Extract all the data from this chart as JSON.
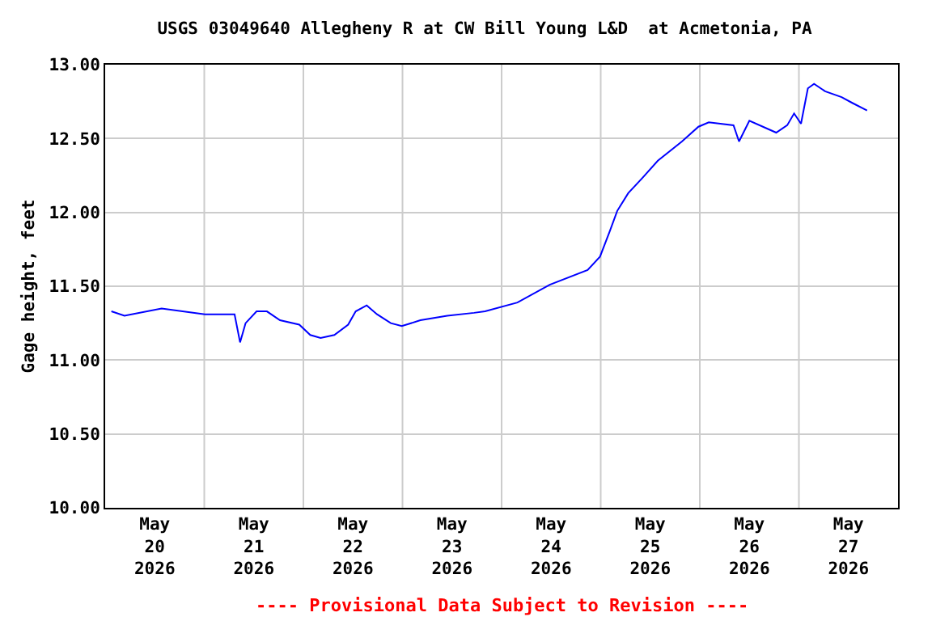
{
  "chart_data": {
    "type": "line",
    "title": "USGS 03049640 Allegheny R at CW Bill Young L&D  at Acmetonia, PA",
    "ylabel": "Gage height, feet",
    "annotations": [
      "---- Provisional Data Subject to Revision ----"
    ],
    "x": [
      "2026-05-20T01:30",
      "2026-05-20T04:40",
      "2026-05-20T13:40",
      "2026-05-21T00:10",
      "2026-05-21T07:20",
      "2026-05-21T08:40",
      "2026-05-21T10:00",
      "2026-05-21T12:40",
      "2026-05-21T15:10",
      "2026-05-21T18:20",
      "2026-05-21T23:00",
      "2026-05-22T01:40",
      "2026-05-22T04:10",
      "2026-05-22T07:30",
      "2026-05-22T10:50",
      "2026-05-22T12:40",
      "2026-05-22T15:20",
      "2026-05-22T17:50",
      "2026-05-22T21:10",
      "2026-05-22T23:50",
      "2026-05-23T04:20",
      "2026-05-23T10:50",
      "2026-05-23T17:20",
      "2026-05-23T20:00",
      "2026-05-24T03:50",
      "2026-05-24T11:40",
      "2026-05-24T20:50",
      "2026-05-24T23:50",
      "2026-05-25T02:10",
      "2026-05-25T04:00",
      "2026-05-25T06:40",
      "2026-05-25T10:00",
      "2026-05-25T13:50",
      "2026-05-25T19:40",
      "2026-05-25T23:40",
      "2026-05-26T02:10",
      "2026-05-26T08:10",
      "2026-05-26T09:30",
      "2026-05-26T12:00",
      "2026-05-26T18:30",
      "2026-05-26T21:10",
      "2026-05-26T22:50",
      "2026-05-27T00:30",
      "2026-05-27T02:10",
      "2026-05-27T03:40",
      "2026-05-27T06:20",
      "2026-05-27T10:20",
      "2026-05-27T13:00",
      "2026-05-27T16:30"
    ],
    "series": [
      {
        "color": "#0000ff",
        "values": [
          11.33,
          11.3,
          11.35,
          11.31,
          11.31,
          11.12,
          11.25,
          11.33,
          11.33,
          11.27,
          11.24,
          11.17,
          11.15,
          11.17,
          11.24,
          11.33,
          11.37,
          11.31,
          11.25,
          11.23,
          11.27,
          11.3,
          11.32,
          11.33,
          11.39,
          11.51,
          11.61,
          11.7,
          11.87,
          12.01,
          12.13,
          12.23,
          12.35,
          12.48,
          12.58,
          12.61,
          12.59,
          12.48,
          12.62,
          12.54,
          12.59,
          12.67,
          12.6,
          12.84,
          12.87,
          12.82,
          12.78,
          12.74,
          12.69
        ]
      }
    ],
    "xlim": [
      "2026-05-20",
      "2026-05-28"
    ],
    "xticks": [
      {
        "value": "2026-05-20T12:00",
        "label": "May\n20\n2026"
      },
      {
        "value": "2026-05-21",
        "label": null
      },
      {
        "value": "2026-05-21T12:00",
        "label": "May\n21\n2026"
      },
      {
        "value": "2026-05-22",
        "label": null
      },
      {
        "value": "2026-05-22T12:00",
        "label": "May\n22\n2026"
      },
      {
        "value": "2026-05-23",
        "label": null
      },
      {
        "value": "2026-05-23T12:00",
        "label": "May\n23\n2026"
      },
      {
        "value": "2026-05-24",
        "label": null
      },
      {
        "value": "2026-05-24T12:00",
        "label": "May\n24\n2026"
      },
      {
        "value": "2026-05-25",
        "label": null
      },
      {
        "value": "2026-05-25T12:00",
        "label": "May\n25\n2026"
      },
      {
        "value": "2026-05-26",
        "label": null
      },
      {
        "value": "2026-05-26T12:00",
        "label": "May\n26\n2026"
      },
      {
        "value": "2026-05-27",
        "label": null
      },
      {
        "value": "2026-05-27T12:00",
        "label": "May\n27\n2026"
      }
    ],
    "ylim": [
      10,
      13
    ],
    "yticks": [
      {
        "value": 10,
        "label": "10.00"
      },
      {
        "value": 10.5,
        "label": "10.50"
      },
      {
        "value": 11,
        "label": "11.00"
      },
      {
        "value": 11.5,
        "label": "11.50"
      },
      {
        "value": 12,
        "label": "12.00"
      },
      {
        "value": 12.5,
        "label": "12.50"
      },
      {
        "value": 13,
        "label": "13.00"
      }
    ],
    "grid": true,
    "marker": "none",
    "line_style": "solid"
  }
}
